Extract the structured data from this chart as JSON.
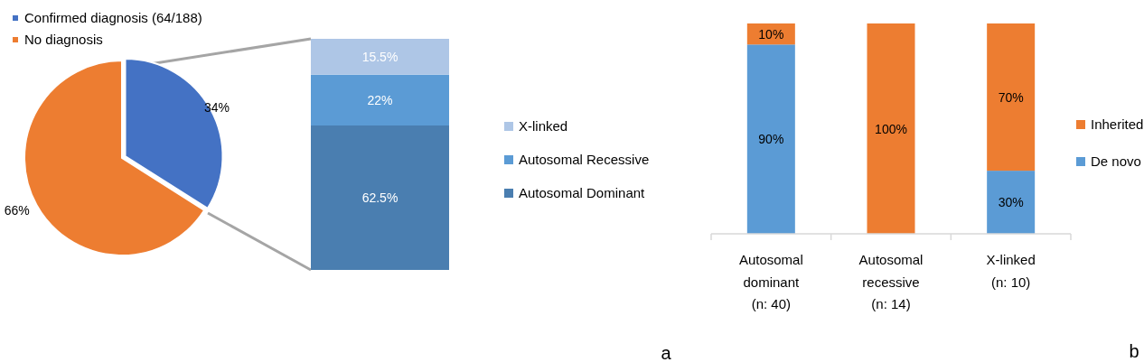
{
  "chart_data": [
    {
      "type": "pie",
      "categories": [
        "Confirmed diagnosis (64/188)",
        "No diagnosis"
      ],
      "values": [
        34,
        66
      ],
      "colors": [
        "#4472c4",
        "#ed7d31"
      ],
      "value_labels": [
        "34%",
        "66%"
      ],
      "legend": "top left"
    },
    {
      "type": "bar",
      "stacked": true,
      "categories": [
        null
      ],
      "ylim": [
        0,
        100
      ],
      "tick_labels": false,
      "legend": "right",
      "annotations": [
        "a"
      ],
      "series": [
        {
          "name": "Autosomal Dominant",
          "color": "#4a7eb0",
          "values": [
            62.5
          ],
          "value_labels": [
            "62.5%"
          ]
        },
        {
          "name": "Autosomal Recessive",
          "color": "#5b9bd5",
          "values": [
            22
          ],
          "value_labels": [
            "22%"
          ]
        },
        {
          "name": "X-linked",
          "color": "#aec6e6",
          "values": [
            15.5
          ],
          "value_labels": [
            "15.5%"
          ]
        }
      ]
    },
    {
      "type": "bar",
      "stacked": true,
      "categories": [
        "Autosomal dominant (n: 40)",
        "Autosomal recessive (n: 14)",
        "X-linked (n: 10)"
      ],
      "ylim": [
        0,
        100
      ],
      "tick_labels": "x",
      "legend": "right",
      "annotations": [
        "b"
      ],
      "series": [
        {
          "name": "De novo",
          "color": "#5b9bd5",
          "values": [
            90,
            0,
            30
          ],
          "value_labels": [
            "90%",
            null,
            "30%"
          ]
        },
        {
          "name": "Inherited",
          "color": "#ed7d31",
          "values": [
            10,
            100,
            70
          ],
          "value_labels": [
            "10%",
            "100%",
            "70%"
          ]
        }
      ]
    }
  ]
}
